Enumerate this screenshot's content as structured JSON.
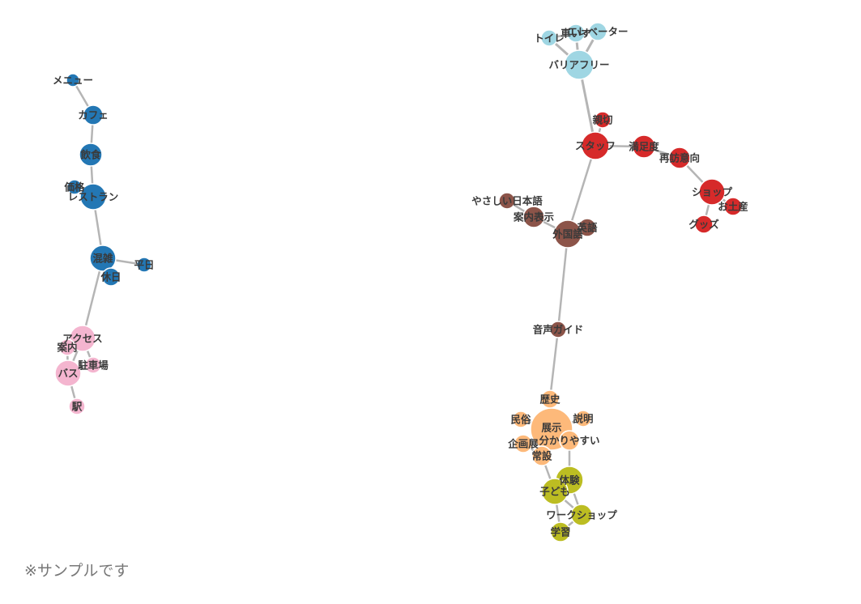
{
  "note": "※サンプルです",
  "colors": {
    "blue": "#2377b4",
    "pink": "#f4b5cf",
    "lightblue": "#9fd6e3",
    "red": "#d62a2a",
    "brown": "#8c5449",
    "orange": "#fdb97a",
    "olive": "#bcbd22",
    "edge": "#b5b5b5"
  },
  "nodes": [
    {
      "id": "menu",
      "label": "メニュー",
      "group": "blue"
    },
    {
      "id": "cafe",
      "label": "カフェ",
      "group": "blue"
    },
    {
      "id": "food",
      "label": "飲食",
      "group": "blue"
    },
    {
      "id": "price",
      "label": "価格",
      "group": "blue"
    },
    {
      "id": "restaurant",
      "label": "レストラン",
      "group": "blue"
    },
    {
      "id": "crowded",
      "label": "混雑",
      "group": "blue"
    },
    {
      "id": "weekday",
      "label": "平日",
      "group": "blue"
    },
    {
      "id": "holiday",
      "label": "休日",
      "group": "blue"
    },
    {
      "id": "access",
      "label": "アクセス",
      "group": "pink"
    },
    {
      "id": "guide",
      "label": "案内",
      "group": "pink"
    },
    {
      "id": "parking",
      "label": "駐車場",
      "group": "pink"
    },
    {
      "id": "bus",
      "label": "バス",
      "group": "pink"
    },
    {
      "id": "station",
      "label": "駅",
      "group": "pink"
    },
    {
      "id": "toilet",
      "label": "トイレ",
      "group": "lightblue"
    },
    {
      "id": "wheelchair",
      "label": "車いす",
      "group": "lightblue"
    },
    {
      "id": "elevator",
      "label": "エレベーター",
      "group": "lightblue"
    },
    {
      "id": "barrierfree",
      "label": "バリアフリー",
      "group": "lightblue"
    },
    {
      "id": "kind",
      "label": "親切",
      "group": "red"
    },
    {
      "id": "staff",
      "label": "スタッフ",
      "group": "red"
    },
    {
      "id": "satisfaction",
      "label": "満足度",
      "group": "red"
    },
    {
      "id": "revisit",
      "label": "再訪意向",
      "group": "red"
    },
    {
      "id": "shop",
      "label": "ショップ",
      "group": "red"
    },
    {
      "id": "souvenir",
      "label": "お土産",
      "group": "red"
    },
    {
      "id": "goods",
      "label": "グッズ",
      "group": "red"
    },
    {
      "id": "easyjp",
      "label": "やさしい日本語",
      "group": "brown"
    },
    {
      "id": "signage",
      "label": "案内表示",
      "group": "brown"
    },
    {
      "id": "english",
      "label": "英語",
      "group": "brown"
    },
    {
      "id": "foreign",
      "label": "外国語",
      "group": "brown"
    },
    {
      "id": "audioguide",
      "label": "音声ガイド",
      "group": "brown"
    },
    {
      "id": "history",
      "label": "歴史",
      "group": "orange"
    },
    {
      "id": "folk",
      "label": "民俗",
      "group": "orange"
    },
    {
      "id": "explain",
      "label": "説明",
      "group": "orange"
    },
    {
      "id": "exhibit",
      "label": "展示",
      "group": "orange"
    },
    {
      "id": "understandable",
      "label": "分かりやすい",
      "group": "orange"
    },
    {
      "id": "special",
      "label": "企画展",
      "group": "orange"
    },
    {
      "id": "permanent",
      "label": "常設",
      "group": "orange"
    },
    {
      "id": "experience",
      "label": "体験",
      "group": "olive"
    },
    {
      "id": "children",
      "label": "子ども",
      "group": "olive"
    },
    {
      "id": "workshop",
      "label": "ワークショップ",
      "group": "olive"
    },
    {
      "id": "learning",
      "label": "学習",
      "group": "olive"
    }
  ],
  "edges": [
    [
      "menu",
      "cafe"
    ],
    [
      "cafe",
      "food"
    ],
    [
      "food",
      "restaurant"
    ],
    [
      "price",
      "restaurant"
    ],
    [
      "restaurant",
      "crowded"
    ],
    [
      "crowded",
      "weekday"
    ],
    [
      "crowded",
      "holiday"
    ],
    [
      "crowded",
      "access"
    ],
    [
      "access",
      "guide"
    ],
    [
      "access",
      "parking"
    ],
    [
      "access",
      "bus"
    ],
    [
      "guide",
      "bus"
    ],
    [
      "bus",
      "parking"
    ],
    [
      "bus",
      "station"
    ],
    [
      "toilet",
      "barrierfree"
    ],
    [
      "wheelchair",
      "barrierfree"
    ],
    [
      "elevator",
      "barrierfree"
    ],
    [
      "toilet",
      "wheelchair"
    ],
    [
      "wheelchair",
      "elevator"
    ],
    [
      "barrierfree",
      "staff"
    ],
    [
      "kind",
      "staff"
    ],
    [
      "staff",
      "satisfaction"
    ],
    [
      "satisfaction",
      "revisit"
    ],
    [
      "revisit",
      "shop"
    ],
    [
      "shop",
      "souvenir"
    ],
    [
      "shop",
      "goods"
    ],
    [
      "staff",
      "foreign"
    ],
    [
      "easyjp",
      "signage"
    ],
    [
      "signage",
      "foreign"
    ],
    [
      "english",
      "foreign"
    ],
    [
      "foreign",
      "audioguide"
    ],
    [
      "audioguide",
      "history"
    ],
    [
      "history",
      "exhibit"
    ],
    [
      "folk",
      "exhibit"
    ],
    [
      "explain",
      "exhibit"
    ],
    [
      "exhibit",
      "understandable"
    ],
    [
      "exhibit",
      "special"
    ],
    [
      "exhibit",
      "permanent"
    ],
    [
      "special",
      "permanent"
    ],
    [
      "understandable",
      "experience"
    ],
    [
      "permanent",
      "children"
    ],
    [
      "experience",
      "children"
    ],
    [
      "experience",
      "workshop"
    ],
    [
      "children",
      "learning"
    ],
    [
      "workshop",
      "learning"
    ],
    [
      "children",
      "workshop"
    ]
  ]
}
